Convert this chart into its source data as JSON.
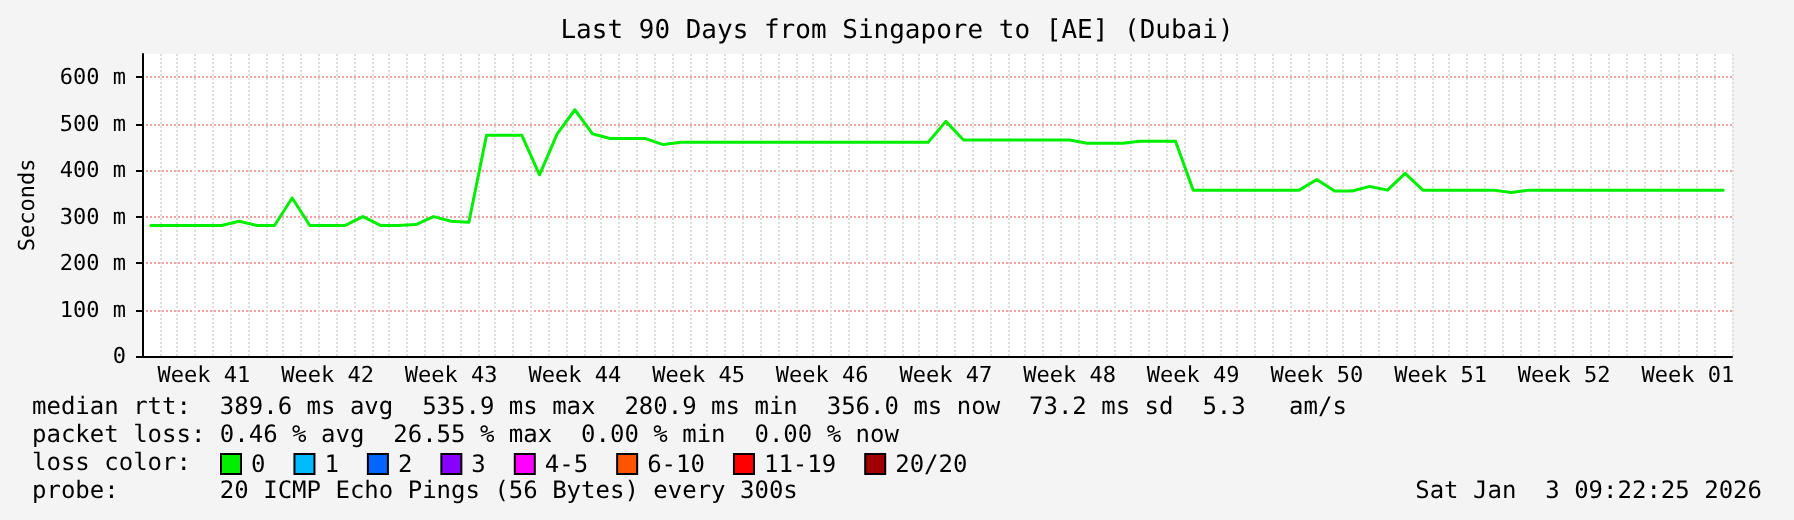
{
  "chart_data": {
    "type": "line",
    "title": "Last 90 Days from Singapore to [AE] (Dubai)",
    "ylabel": "Seconds",
    "legend_title": "loss color:",
    "categories": [
      null,
      null,
      null,
      "Week 41",
      null,
      null,
      null,
      null,
      null,
      null,
      "Week 42",
      null,
      null,
      null,
      null,
      null,
      null,
      "Week 43",
      null,
      null,
      null,
      null,
      null,
      null,
      "Week 44",
      null,
      null,
      null,
      null,
      null,
      null,
      "Week 45",
      null,
      null,
      null,
      null,
      null,
      null,
      "Week 46",
      null,
      null,
      null,
      null,
      null,
      null,
      "Week 47",
      null,
      null,
      null,
      null,
      null,
      null,
      "Week 48",
      null,
      null,
      null,
      null,
      null,
      null,
      "Week 49",
      null,
      null,
      null,
      null,
      null,
      null,
      "Week 50",
      null,
      null,
      null,
      null,
      null,
      null,
      "Week 51",
      null,
      null,
      null,
      null,
      null,
      null,
      "Week 52",
      null,
      null,
      null,
      null,
      null,
      null,
      "Week 01",
      null,
      null
    ],
    "ylim": [
      0,
      650
    ],
    "yticks": [
      0,
      {
        "value": 100,
        "label": "100 m"
      },
      {
        "value": 200,
        "label": "200 m"
      },
      {
        "value": 300,
        "label": "300 m"
      },
      {
        "value": 400,
        "label": "400 m"
      },
      {
        "value": 500,
        "label": "500 m"
      },
      {
        "value": 600,
        "label": "600 m"
      }
    ],
    "grid": true,
    "legend": "bottom left",
    "marker": "none",
    "line_style": "solid",
    "series": [
      {
        "name": "0",
        "color": "#00ee00",
        "values": [
          281,
          281,
          281,
          281,
          281,
          290,
          281,
          281,
          340,
          281,
          281,
          281,
          300,
          281,
          281,
          283,
          300,
          290,
          288,
          475,
          475,
          475,
          390,
          478,
          530,
          478,
          468,
          468,
          468,
          455,
          460,
          460,
          460,
          460,
          460,
          460,
          460,
          460,
          460,
          460,
          460,
          460,
          460,
          460,
          460,
          505,
          465,
          465,
          465,
          465,
          465,
          465,
          465,
          458,
          458,
          458,
          462,
          462,
          462,
          357,
          357,
          357,
          357,
          357,
          357,
          357,
          380,
          355,
          355,
          365,
          357,
          393,
          357,
          357,
          357,
          357,
          357,
          352,
          357,
          357,
          357,
          357,
          357,
          357,
          357,
          357,
          357,
          357,
          357,
          357
        ]
      },
      {
        "name": "1",
        "color": "#00bbff",
        "values": [
          null,
          null,
          null,
          null,
          null,
          null,
          null,
          null,
          null,
          null,
          null,
          null,
          null,
          null,
          null,
          null,
          null,
          null,
          null,
          null,
          null,
          null,
          null,
          null,
          null,
          null,
          null,
          null,
          null,
          null,
          null,
          null,
          null,
          null,
          null,
          null,
          null,
          null,
          null,
          null,
          null,
          null,
          null,
          null,
          null,
          null,
          null,
          null,
          null,
          null,
          null,
          null,
          null,
          null,
          null,
          null,
          null,
          null,
          null,
          null,
          null,
          null,
          null,
          null,
          null,
          null,
          null,
          null,
          null,
          null,
          null,
          null,
          null,
          null,
          null,
          null,
          null,
          null,
          null,
          null,
          null,
          null,
          null,
          null,
          null,
          null,
          null,
          null,
          null,
          null
        ]
      },
      {
        "name": "2",
        "color": "#0066ff",
        "values": [
          null,
          null,
          null,
          null,
          null,
          null,
          null,
          null,
          null,
          null,
          null,
          null,
          null,
          null,
          null,
          null,
          null,
          null,
          null,
          null,
          null,
          null,
          null,
          null,
          null,
          null,
          null,
          null,
          null,
          null,
          null,
          null,
          null,
          null,
          null,
          null,
          null,
          null,
          null,
          null,
          null,
          null,
          null,
          null,
          null,
          null,
          null,
          null,
          null,
          null,
          null,
          null,
          null,
          null,
          null,
          null,
          null,
          null,
          null,
          null,
          null,
          null,
          null,
          null,
          null,
          null,
          null,
          null,
          null,
          null,
          null,
          null,
          null,
          null,
          null,
          null,
          null,
          null,
          null,
          null,
          null,
          null,
          null,
          null,
          null,
          null,
          null,
          null,
          null,
          null
        ]
      },
      {
        "name": "3",
        "color": "#8800ff",
        "values": [
          null,
          null,
          null,
          null,
          null,
          null,
          null,
          null,
          null,
          null,
          null,
          null,
          null,
          null,
          null,
          null,
          null,
          null,
          null,
          null,
          null,
          null,
          null,
          null,
          null,
          null,
          null,
          null,
          null,
          null,
          null,
          null,
          null,
          null,
          null,
          null,
          null,
          null,
          null,
          null,
          null,
          null,
          null,
          null,
          null,
          null,
          null,
          null,
          null,
          null,
          null,
          null,
          null,
          null,
          null,
          null,
          null,
          null,
          null,
          null,
          null,
          null,
          null,
          null,
          null,
          null,
          null,
          null,
          null,
          null,
          null,
          null,
          null,
          null,
          null,
          null,
          null,
          null,
          null,
          null,
          null,
          null,
          null,
          null,
          null,
          null,
          null,
          null,
          null,
          null
        ]
      },
      {
        "name": "4-5",
        "color": "#ff00ff",
        "values": [
          null,
          null,
          null,
          null,
          null,
          null,
          null,
          null,
          null,
          null,
          null,
          null,
          null,
          null,
          null,
          null,
          null,
          null,
          null,
          null,
          null,
          null,
          null,
          null,
          null,
          null,
          null,
          null,
          null,
          null,
          null,
          null,
          null,
          null,
          null,
          null,
          null,
          null,
          null,
          null,
          null,
          null,
          null,
          null,
          null,
          null,
          null,
          null,
          null,
          null,
          null,
          null,
          null,
          null,
          null,
          null,
          null,
          null,
          null,
          null,
          null,
          null,
          null,
          null,
          null,
          null,
          null,
          null,
          null,
          null,
          null,
          null,
          null,
          null,
          null,
          null,
          null,
          null,
          null,
          null,
          null,
          null,
          null,
          null,
          null,
          null,
          null,
          null,
          null,
          null
        ]
      },
      {
        "name": "6-10",
        "color": "#ff5500",
        "values": [
          null,
          null,
          null,
          null,
          null,
          null,
          null,
          null,
          null,
          null,
          null,
          null,
          null,
          null,
          null,
          null,
          null,
          null,
          null,
          null,
          null,
          null,
          null,
          null,
          null,
          null,
          null,
          null,
          null,
          null,
          null,
          null,
          null,
          null,
          null,
          null,
          null,
          null,
          null,
          null,
          null,
          null,
          null,
          null,
          null,
          null,
          null,
          null,
          null,
          null,
          null,
          null,
          null,
          null,
          null,
          null,
          null,
          null,
          null,
          null,
          null,
          null,
          null,
          null,
          null,
          null,
          null,
          null,
          null,
          null,
          null,
          null,
          null,
          null,
          null,
          null,
          null,
          null,
          null,
          null,
          null,
          null,
          null,
          null,
          null,
          null,
          null,
          null,
          null,
          null
        ]
      },
      {
        "name": "11-19",
        "color": "#ff0000",
        "values": [
          null,
          null,
          null,
          null,
          null,
          null,
          null,
          null,
          null,
          null,
          null,
          null,
          null,
          null,
          null,
          null,
          null,
          null,
          null,
          null,
          null,
          null,
          null,
          null,
          null,
          null,
          null,
          null,
          null,
          null,
          null,
          null,
          null,
          null,
          null,
          null,
          null,
          null,
          null,
          null,
          null,
          null,
          null,
          null,
          null,
          null,
          null,
          null,
          null,
          null,
          null,
          null,
          null,
          null,
          null,
          null,
          null,
          null,
          null,
          null,
          null,
          null,
          null,
          null,
          null,
          null,
          null,
          null,
          null,
          null,
          null,
          null,
          null,
          null,
          null,
          null,
          null,
          null,
          null,
          null,
          null,
          null,
          null,
          null,
          null,
          null,
          null,
          null,
          null,
          null
        ]
      },
      {
        "name": "20/20",
        "color": "#a10000",
        "values": [
          null,
          null,
          null,
          null,
          null,
          null,
          null,
          null,
          null,
          null,
          null,
          null,
          null,
          null,
          null,
          null,
          null,
          null,
          null,
          null,
          null,
          null,
          null,
          null,
          null,
          null,
          null,
          null,
          null,
          null,
          null,
          null,
          null,
          null,
          null,
          null,
          null,
          null,
          null,
          null,
          null,
          null,
          null,
          null,
          null,
          null,
          null,
          null,
          null,
          null,
          null,
          null,
          null,
          null,
          null,
          null,
          null,
          null,
          null,
          null,
          null,
          null,
          null,
          null,
          null,
          null,
          null,
          null,
          null,
          null,
          null,
          null,
          null,
          null,
          null,
          null,
          null,
          null,
          null,
          null,
          null,
          null,
          null,
          null,
          null,
          null,
          null,
          null,
          null,
          null
        ]
      }
    ],
    "annotations": [
      "median rtt:  389.6 ms avg  535.9 ms max  280.9 ms min  356.0 ms now  73.2 ms sd  5.3   am/s",
      "packet loss: 0.46 % avg  26.55 % max  0.00 % min  0.00 % now",
      "probe:       20 ICMP Echo Pings (56 Bytes) every 300s",
      "Sat Jan  3 09:22:25 2026"
    ]
  }
}
